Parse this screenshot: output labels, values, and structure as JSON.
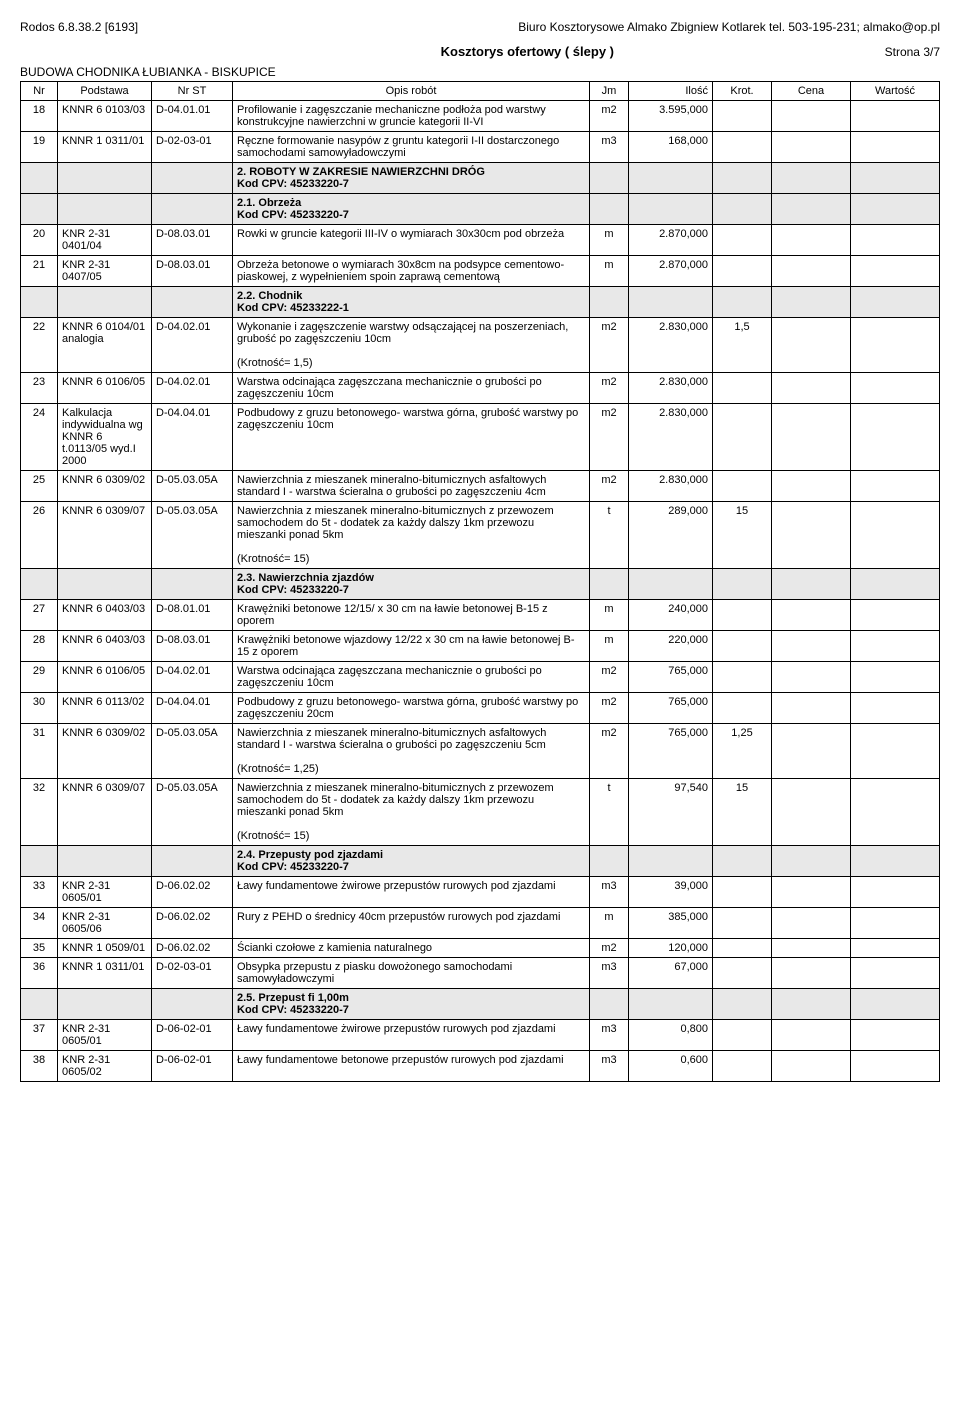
{
  "meta": {
    "software": "Rodos 6.8.38.2 [6193]",
    "company": "Biuro Kosztorysowe Almako Zbigniew Kotlarek tel. 503-195-231; almako@op.pl",
    "title": "Kosztorys ofertowy ( ślepy )",
    "page": "Strona 3/7",
    "project": "BUDOWA CHODNIKA ŁUBIANKA - BISKUPICE"
  },
  "columns": [
    "Nr",
    "Podstawa",
    "Nr ST",
    "Opis robót",
    "Jm",
    "Ilość",
    "Krot.",
    "Cena",
    "Wartość"
  ],
  "rows": [
    {
      "nr": "18",
      "pod": "KNNR 6 0103/03",
      "st": "D-04.01.01",
      "opis": "Profilowanie i zagęszczanie mechaniczne podłoża pod warstwy konstrukcyjne nawierzchni w gruncie kategorii II-VI",
      "jm": "m2",
      "ilosc": "3.595,000",
      "krot": ""
    },
    {
      "nr": "19",
      "pod": "KNNR 1 0311/01",
      "st": "D-02-03-01",
      "opis": "Ręczne formowanie nasypów z gruntu kategorii I-II dostarczonego samochodami samowyładowczymi",
      "jm": "m3",
      "ilosc": "168,000",
      "krot": ""
    },
    {
      "section": true,
      "opis": "2.  ROBOTY W ZAKRESIE NAWIERZCHNI DRÓG\nKod CPV: 45233220-7"
    },
    {
      "section": true,
      "opis": "2.1.  Obrzeża\nKod CPV: 45233220-7"
    },
    {
      "nr": "20",
      "pod": "KNR 2-31 0401/04",
      "st": "D-08.03.01",
      "opis": "Rowki w gruncie kategorii III-IV o wymiarach 30x30cm pod obrzeża",
      "jm": "m",
      "ilosc": "2.870,000",
      "krot": ""
    },
    {
      "nr": "21",
      "pod": "KNR 2-31 0407/05",
      "st": "D-08.03.01",
      "opis": "Obrzeża betonowe o wymiarach 30x8cm na podsypce cementowo-piaskowej, z wypełnieniem spoin zaprawą cementową",
      "jm": "m",
      "ilosc": "2.870,000",
      "krot": ""
    },
    {
      "section": true,
      "opis": "2.2.  Chodnik\nKod CPV: 45233222-1"
    },
    {
      "nr": "22",
      "pod": "KNNR 6 0104/01 analogia",
      "st": "D-04.02.01",
      "opis": "Wykonanie i zagęszczenie warstwy odsączającej na poszerzeniach, grubość po zagęszczeniu 10cm\n\n (Krotność= 1,5)",
      "jm": "m2",
      "ilosc": "2.830,000",
      "krot": "1,5"
    },
    {
      "nr": "23",
      "pod": "KNNR 6 0106/05",
      "st": "D-04.02.01",
      "opis": "Warstwa odcinająca zagęszczana mechanicznie o grubości po zagęszczeniu 10cm",
      "jm": "m2",
      "ilosc": "2.830,000",
      "krot": ""
    },
    {
      "nr": "24",
      "pod": "Kalkulacja indywidualna wg KNNR 6 t.0113/05 wyd.I 2000",
      "st": "D-04.04.01",
      "opis": "Podbudowy z gruzu betonowego-  warstwa górna, grubość warstwy po zagęszczeniu 10cm",
      "jm": "m2",
      "ilosc": "2.830,000",
      "krot": ""
    },
    {
      "nr": "25",
      "pod": "KNNR 6 0309/02",
      "st": "D-05.03.05A",
      "opis": "Nawierzchnia z mieszanek mineralno-bitumicznych asfaltowych standard I - warstwa ścieralna o grubości po zagęszczeniu 4cm",
      "jm": "m2",
      "ilosc": "2.830,000",
      "krot": ""
    },
    {
      "nr": "26",
      "pod": "KNNR 6 0309/07",
      "st": "D-05.03.05A",
      "opis": "Nawierzchnia z mieszanek mineralno-bitumicznych z przewozem samochodem do 5t - dodatek za każdy dalszy 1km przewozu mieszanki ponad 5km\n\n (Krotność= 15)",
      "jm": "t",
      "ilosc": "289,000",
      "krot": "15"
    },
    {
      "section": true,
      "opis": "2.3.  Nawierzchnia zjazdów\nKod CPV: 45233220-7"
    },
    {
      "nr": "27",
      "pod": "KNNR 6 0403/03",
      "st": "D-08.01.01",
      "opis": "Krawężniki betonowe 12/15/ x 30 cm na ławie betonowej   B-15 z oporem",
      "jm": "m",
      "ilosc": "240,000",
      "krot": ""
    },
    {
      "nr": "28",
      "pod": "KNNR 6 0403/03",
      "st": "D-08.03.01",
      "opis": "Krawężniki betonowe wjazdowy 12/22 x 30 cm na ławie betonowej   B-15 z oporem",
      "jm": "m",
      "ilosc": "220,000",
      "krot": ""
    },
    {
      "nr": "29",
      "pod": "KNNR 6 0106/05",
      "st": "D-04.02.01",
      "opis": "Warstwa odcinająca zagęszczana mechanicznie o grubości po zagęszczeniu 10cm",
      "jm": "m2",
      "ilosc": "765,000",
      "krot": ""
    },
    {
      "nr": "30",
      "pod": "KNNR 6 0113/02",
      "st": "D-04.04.01",
      "opis": "Podbudowy z gruzu betonowego-  warstwa górna, grubość warstwy po zagęszczeniu 20cm",
      "jm": "m2",
      "ilosc": "765,000",
      "krot": ""
    },
    {
      "nr": "31",
      "pod": "KNNR 6 0309/02",
      "st": "D-05.03.05A",
      "opis": "Nawierzchnia z mieszanek mineralno-bitumicznych asfaltowych standard I - warstwa ścieralna o grubości po zagęszczeniu 5cm\n\n (Krotność= 1,25)",
      "jm": "m2",
      "ilosc": "765,000",
      "krot": "1,25"
    },
    {
      "nr": "32",
      "pod": "KNNR 6 0309/07",
      "st": "D-05.03.05A",
      "opis": "Nawierzchnia z mieszanek mineralno-bitumicznych z przewozem samochodem do 5t - dodatek za każdy dalszy 1km przewozu mieszanki ponad 5km\n\n (Krotność= 15)",
      "jm": "t",
      "ilosc": "97,540",
      "krot": "15"
    },
    {
      "section": true,
      "opis": "2.4.  Przepusty pod zjazdami\nKod CPV: 45233220-7"
    },
    {
      "nr": "33",
      "pod": "KNR 2-31 0605/01",
      "st": "D-06.02.02",
      "opis": "Ławy fundamentowe żwirowe przepustów rurowych pod zjazdami",
      "jm": "m3",
      "ilosc": "39,000",
      "krot": ""
    },
    {
      "nr": "34",
      "pod": "KNR 2-31 0605/06",
      "st": "D-06.02.02",
      "opis": "Rury z PEHD o średnicy 40cm przepustów rurowych pod zjazdami",
      "jm": "m",
      "ilosc": "385,000",
      "krot": ""
    },
    {
      "nr": "35",
      "pod": "KNNR 1 0509/01",
      "st": "D-06.02.02",
      "opis": "Ścianki czołowe z kamienia naturalnego",
      "jm": "m2",
      "ilosc": "120,000",
      "krot": ""
    },
    {
      "nr": "36",
      "pod": "KNNR 1 0311/01",
      "st": "D-02-03-01",
      "opis": "Obsypka przepustu z piasku dowożonego samochodami samowyładowczymi",
      "jm": "m3",
      "ilosc": "67,000",
      "krot": ""
    },
    {
      "section": true,
      "opis": "2.5.  Przepust fi 1,00m\nKod CPV: 45233220-7"
    },
    {
      "nr": "37",
      "pod": "KNR 2-31 0605/01",
      "st": "D-06-02-01",
      "opis": "Ławy fundamentowe żwirowe przepustów rurowych pod zjazdami",
      "jm": "m3",
      "ilosc": "0,800",
      "krot": ""
    },
    {
      "nr": "38",
      "pod": "KNR 2-31 0605/02",
      "st": "D-06-02-01",
      "opis": "Ławy fundamentowe betonowe przepustów rurowych pod zjazdami",
      "jm": "m3",
      "ilosc": "0,600",
      "krot": ""
    }
  ]
}
